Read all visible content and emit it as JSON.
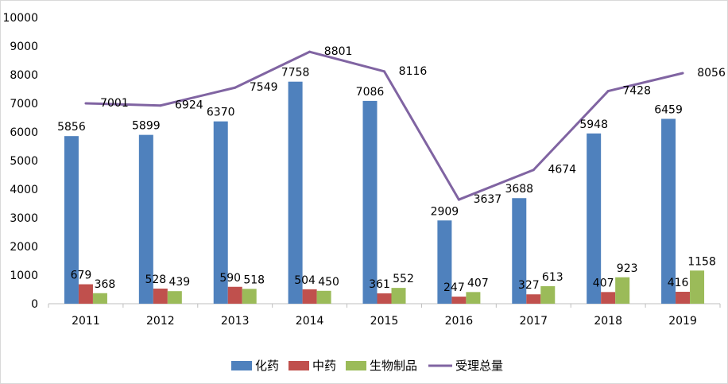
{
  "chart_data": {
    "type": "bar",
    "categories": [
      "2011",
      "2012",
      "2013",
      "2014",
      "2015",
      "2016",
      "2017",
      "2018",
      "2019"
    ],
    "series": [
      {
        "name": "化药",
        "type": "bar",
        "color": "#4f81bd",
        "values": [
          5856,
          5899,
          6370,
          7758,
          7086,
          2909,
          3688,
          5948,
          6459
        ]
      },
      {
        "name": "中药",
        "type": "bar",
        "color": "#c0504d",
        "values": [
          679,
          528,
          590,
          504,
          361,
          247,
          327,
          407,
          416
        ]
      },
      {
        "name": "生物制品",
        "type": "bar",
        "color": "#9bbb59",
        "values": [
          368,
          439,
          518,
          450,
          552,
          407,
          613,
          923,
          1158
        ]
      },
      {
        "name": "受理总量",
        "type": "line",
        "color": "#8064a2",
        "values": [
          7001,
          6924,
          7549,
          8801,
          8116,
          3637,
          4674,
          7428,
          8056
        ]
      }
    ],
    "ylim": [
      0,
      10000
    ],
    "yticks": [
      0,
      1000,
      2000,
      3000,
      4000,
      5000,
      6000,
      7000,
      8000,
      9000,
      10000
    ],
    "grid": false,
    "legend_position": "bottom"
  }
}
